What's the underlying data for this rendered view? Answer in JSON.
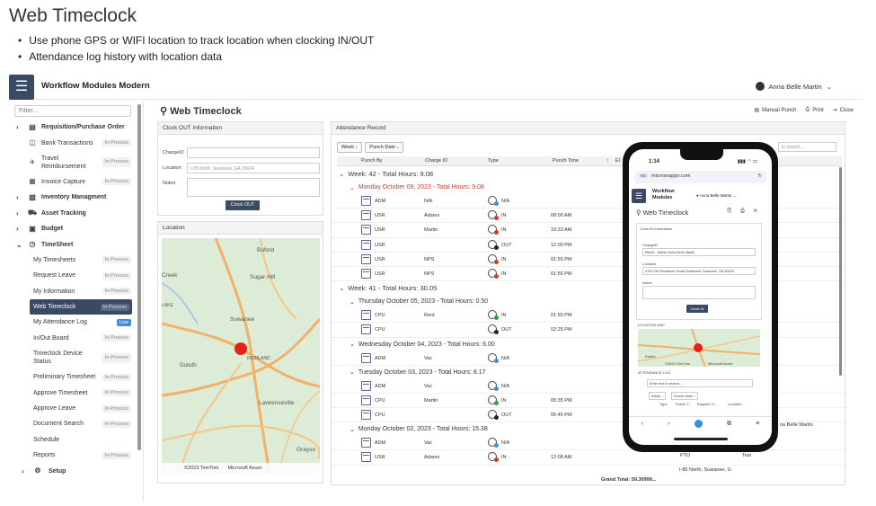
{
  "slide": {
    "title": "Web Timeclock",
    "bullets": [
      "Use phone GPS or WIFI location to track location when clocking IN/OUT",
      "Attendance log history with location data"
    ]
  },
  "topbar": {
    "app_name": "Workflow Modules Modern",
    "user_name": "Anna Belle Martin",
    "user_chevron": "⌄"
  },
  "sidebar": {
    "filter_placeholder": "Filter...",
    "items": [
      {
        "label": "Requisition/Purchase Order",
        "level": "top",
        "expand": "›"
      },
      {
        "label": "Bank Transactions",
        "badge": "In-Process"
      },
      {
        "label": "Travel Reimbursement",
        "badge": "In-Process"
      },
      {
        "label": "Invoice Capture",
        "badge": "In-Process"
      },
      {
        "label": "Inventory Managment",
        "level": "top",
        "expand": "›"
      },
      {
        "label": "Asset Tracking",
        "level": "top",
        "expand": "›"
      },
      {
        "label": "Budget",
        "level": "top",
        "expand": "›"
      },
      {
        "label": "TimeSheet",
        "level": "top",
        "expand": "⌄"
      },
      {
        "label": "My Timesheets",
        "badge": "In-Process"
      },
      {
        "label": "Request Leave",
        "badge": "In-Process"
      },
      {
        "label": "My Information",
        "badge": "In-Process"
      },
      {
        "label": "Web Timeclock",
        "badge": "In-Process"
      },
      {
        "label": "My Attendance Log",
        "badge": "Live"
      },
      {
        "label": "In/Out Board",
        "badge": "In-Process"
      },
      {
        "label": "Timeclock Device Status",
        "badge": "In-Process"
      },
      {
        "label": "Preliminary Timesheet",
        "badge": "In-Process"
      },
      {
        "label": "Approve Timesheet",
        "badge": "In-Process"
      },
      {
        "label": "Approve Leave",
        "badge": "In-Process"
      },
      {
        "label": "Document Search",
        "badge": "In-Process"
      },
      {
        "label": "Schedule",
        "badge": ""
      },
      {
        "label": "Reports",
        "badge": "In-Process"
      },
      {
        "label": "Setup",
        "level": "top",
        "expand": "›"
      }
    ]
  },
  "page": {
    "title": "Web Timeclock",
    "actions": {
      "manual_punch": "Manual Punch",
      "print": "Print",
      "close": "Close"
    }
  },
  "clockout": {
    "header": "Clock OUT Information",
    "charge_label": "ChargeID",
    "location_label": "Location",
    "location_value": "I-85 North, Suwanee, GA 30024",
    "notes_label": "Notes",
    "button": "Clock OUT"
  },
  "location": {
    "header": "Location",
    "places": [
      "Buford",
      "Sugar Hill",
      "Suwanee",
      "Duluth",
      "Lawrenceville",
      "Creek",
      "LAKE",
      "RICHLAND",
      "Grayso"
    ],
    "copyright": "©2023 TomTom",
    "provider": "Microsoft Azure"
  },
  "attendance": {
    "header": "Attendance Record",
    "toolbar": {
      "week": "Week",
      "punch_date": "Punch Date",
      "sort_arrow": "↓"
    },
    "search_placeholder": "to search...",
    "columns": [
      "Punch By",
      "Charge ID",
      "Type",
      "Punch Time",
      "El"
    ],
    "groups": [
      {
        "kind": "week",
        "label": "Week: 42 - Total Hours: 9.08"
      },
      {
        "kind": "day",
        "label": "Monday October 09, 2023 - Total Hours: 9.08",
        "red": true
      },
      {
        "kind": "row",
        "by": "ADM",
        "charge": "N/A",
        "type": "N/A",
        "time": "",
        "status": "blue"
      },
      {
        "kind": "row",
        "by": "USR",
        "charge": "Adams",
        "type": "IN",
        "time": "08:00 AM",
        "status": "red"
      },
      {
        "kind": "row",
        "by": "USR",
        "charge": "Martin",
        "type": "IN",
        "time": "10:33 AM",
        "status": "red"
      },
      {
        "kind": "row",
        "by": "USR",
        "charge": "",
        "type": "OUT",
        "time": "12:00 PM",
        "status": "dark"
      },
      {
        "kind": "row",
        "by": "USR",
        "charge": "NPS",
        "type": "IN",
        "time": "01:55 PM",
        "status": "red"
      },
      {
        "kind": "row",
        "by": "USR",
        "charge": "NPS",
        "type": "IN",
        "time": "01:55 PM",
        "status": "red"
      },
      {
        "kind": "week",
        "label": "Week: 41 - Total Hours: 30.05"
      },
      {
        "kind": "day",
        "label": "Thursday October 05, 2023 - Total Hours: 0.50"
      },
      {
        "kind": "row",
        "by": "CPU",
        "charge": "Rent",
        "type": "IN",
        "time": "01:55 PM",
        "status": "green"
      },
      {
        "kind": "row",
        "by": "CPU",
        "charge": "",
        "type": "OUT",
        "time": "02:25 PM",
        "status": "dark"
      },
      {
        "kind": "day",
        "label": "Wednesday October 04, 2023 - Total Hours: 6.00"
      },
      {
        "kind": "row",
        "by": "ADM",
        "charge": "Vac",
        "type": "N/A",
        "time": "",
        "status": "blue"
      },
      {
        "kind": "day",
        "label": "Tuesday October 03, 2023 - Total Hours: 8.17"
      },
      {
        "kind": "row",
        "by": "ADM",
        "charge": "Vac",
        "type": "N/A",
        "time": "",
        "status": "blue"
      },
      {
        "kind": "row",
        "by": "CPU",
        "charge": "Martin",
        "type": "IN",
        "time": "05:35 PM",
        "status": "green"
      },
      {
        "kind": "row",
        "by": "CPU",
        "charge": "",
        "type": "OUT",
        "time": "05:45 PM",
        "status": "dark"
      },
      {
        "kind": "day",
        "label": "Monday October 02, 2023 - Total Hours: 15.38"
      },
      {
        "kind": "row",
        "by": "ADM",
        "charge": "Vac",
        "type": "N/A",
        "time": "",
        "status": "blue"
      },
      {
        "kind": "row",
        "by": "USR",
        "charge": "Adams",
        "type": "IN",
        "time": "12:08 AM",
        "status": "red"
      }
    ],
    "overflow": {
      "martin": "na Belle Martin",
      "pto": "PTO",
      "test": "Test",
      "suwanee": "I-85 North, Suwanee, G"
    },
    "grand_total": "Grand Total: 59.30999..."
  },
  "phone": {
    "time": "1:14",
    "status": "▮▮▮ ◠ ▭",
    "url": "microsoappo.com",
    "url_tag": "RG",
    "app_name": "Workflow Modules",
    "user": "Anna Belle Martin",
    "title": "Web Timeclock",
    "icons": "⎘ ⎙ ✕",
    "clockin_header": "Clock IN Information",
    "charge_label": "ChargeID",
    "charge_value": "Martin - Martin Anna Belle Martin",
    "location_label": "Location",
    "location_value": "4763 Old Peachtree Road Northwest, Suwanee, GA 30024",
    "notes_label": "Notes",
    "button": "Clock IN",
    "map_header": "LOCATION MAP",
    "map_place": "Duluth",
    "map_copyright": "©2024 TomTom",
    "map_provider": "Microsoft Azure",
    "log_header": "ATTENDANCE LOG",
    "log_search": "Enter text to search...",
    "log_week": "Week",
    "log_punch_date": "Punch Date",
    "log_columns": [
      "Type",
      "Punch T...",
      "Elapsed Ti...",
      "Location"
    ],
    "nav": [
      "‹",
      "›",
      "",
      "⧉",
      "≡"
    ]
  }
}
